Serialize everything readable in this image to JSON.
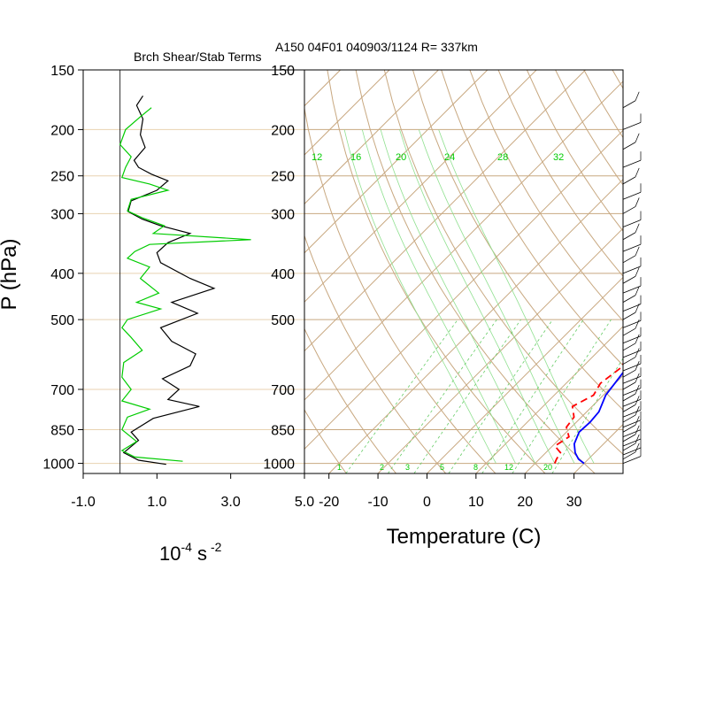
{
  "header_text": "A150 04F01 040903/1124 R= 337km",
  "chart_data": [
    {
      "type": "line",
      "panel": "left",
      "title": "Brch Shear/Stab Terms",
      "xlabel_base": "10",
      "xlabel_exp": "-4",
      "xlabel_unit": "s",
      "xlabel_unit_exp": "-2",
      "ylabel": "P (hPa)",
      "y_scale": "log",
      "y_reversed": true,
      "xlim": [
        -1.0,
        5.0
      ],
      "ylim": [
        1050,
        150
      ],
      "x_ticks": [
        "-1.0",
        "1.0",
        "3.0",
        "5.0"
      ],
      "y_ticks": [
        "150",
        "200",
        "250",
        "300",
        "400",
        "500",
        "700",
        "850",
        "1000"
      ],
      "zero_line": 0,
      "series": [
        {
          "color": "#000000",
          "points": [
            [
              0.62,
              170
            ],
            [
              0.45,
              178
            ],
            [
              0.62,
              190
            ],
            [
              0.55,
              205
            ],
            [
              0.68,
              218
            ],
            [
              0.38,
              232
            ],
            [
              0.5,
              240
            ],
            [
              0.85,
              248
            ],
            [
              1.3,
              256
            ],
            [
              1.0,
              268
            ],
            [
              0.3,
              282
            ],
            [
              0.22,
              297
            ],
            [
              0.6,
              308
            ],
            [
              1.1,
              318
            ],
            [
              1.9,
              330
            ],
            [
              1.3,
              345
            ],
            [
              1.0,
              362
            ],
            [
              1.1,
              380
            ],
            [
              1.9,
              410
            ],
            [
              2.55,
              430
            ],
            [
              1.4,
              460
            ],
            [
              2.1,
              485
            ],
            [
              1.1,
              520
            ],
            [
              1.4,
              555
            ],
            [
              2.05,
              590
            ],
            [
              1.9,
              625
            ],
            [
              1.15,
              665
            ],
            [
              1.6,
              700
            ],
            [
              1.3,
              735
            ],
            [
              2.15,
              760
            ],
            [
              0.9,
              805
            ],
            [
              0.3,
              860
            ],
            [
              0.5,
              895
            ],
            [
              0.1,
              950
            ],
            [
              0.5,
              985
            ],
            [
              1.25,
              1005
            ]
          ]
        },
        {
          "color": "#00cc00",
          "points": [
            [
              0.85,
              180
            ],
            [
              0.55,
              188
            ],
            [
              0.15,
              200
            ],
            [
              0.0,
              215
            ],
            [
              0.3,
              228
            ],
            [
              0.15,
              240
            ],
            [
              0.05,
              252
            ],
            [
              0.8,
              260
            ],
            [
              1.3,
              268
            ],
            [
              0.3,
              280
            ],
            [
              0.2,
              296
            ],
            [
              0.6,
              306
            ],
            [
              1.2,
              318
            ],
            [
              0.9,
              330
            ],
            [
              3.55,
              340
            ],
            [
              0.8,
              348
            ],
            [
              0.4,
              360
            ],
            [
              0.2,
              372
            ],
            [
              0.8,
              388
            ],
            [
              0.55,
              410
            ],
            [
              1.05,
              440
            ],
            [
              0.45,
              460
            ],
            [
              1.1,
              475
            ],
            [
              0.2,
              500
            ],
            [
              0.05,
              520
            ],
            [
              0.3,
              545
            ],
            [
              0.6,
              580
            ],
            [
              0.1,
              615
            ],
            [
              0.05,
              660
            ],
            [
              0.3,
              700
            ],
            [
              0.05,
              740
            ],
            [
              0.8,
              770
            ],
            [
              0.2,
              800
            ],
            [
              0.05,
              850
            ],
            [
              0.45,
              900
            ],
            [
              0.05,
              940
            ],
            [
              0.4,
              970
            ],
            [
              1.7,
              990
            ]
          ]
        }
      ]
    },
    {
      "type": "line",
      "panel": "right",
      "subtype": "skew-T",
      "xlabel": "Temperature (C)",
      "y_scale": "log",
      "y_reversed": true,
      "xlim": [
        -25,
        40
      ],
      "ylim": [
        1050,
        150
      ],
      "x_ticks": [
        "-20",
        "-10",
        "0",
        "10",
        "20",
        "30"
      ],
      "y_ticks": [
        "150",
        "200",
        "250",
        "300",
        "400",
        "500",
        "700",
        "850",
        "1000"
      ],
      "mixing_ratio_labels": [
        "12",
        "16",
        "20",
        "24",
        "28",
        "32"
      ],
      "mixing_ratio_label_colors": "#00cc00",
      "isotherm_labels_bottom": [
        "1",
        "2",
        "3",
        "5",
        "8",
        "12",
        "20"
      ],
      "series": [
        {
          "color": "#0000ff",
          "style": "solid",
          "points": [
            [
              30.0,
              1000
            ],
            [
              28.0,
              980
            ],
            [
              26.0,
              950
            ],
            [
              24.0,
              910
            ],
            [
              22.6,
              860
            ],
            [
              22.8,
              820
            ],
            [
              22.5,
              780
            ],
            [
              20.5,
              720
            ],
            [
              19.5,
              650
            ],
            [
              18.5,
              580
            ],
            [
              17.2,
              520
            ],
            [
              16.3,
              490
            ],
            [
              16.0,
              440
            ],
            [
              14.5,
              400
            ],
            [
              12.0,
              350
            ],
            [
              10.5,
              300
            ],
            [
              8.8,
              270
            ],
            [
              6.0,
              240
            ],
            [
              4.2,
              215
            ],
            [
              2.5,
              195
            ],
            [
              1.0,
              180
            ],
            [
              0.2,
              172
            ]
          ]
        },
        {
          "color": "#ff0000",
          "style": "dashed",
          "points": [
            [
              24.0,
              1000
            ],
            [
              23.5,
              980
            ],
            [
              23.0,
              950
            ],
            [
              20.5,
              920
            ],
            [
              21.5,
              880
            ],
            [
              19.0,
              840
            ],
            [
              18.5,
              800
            ],
            [
              16.0,
              760
            ],
            [
              18.0,
              720
            ],
            [
              17.0,
              680
            ],
            [
              18.0,
              630
            ],
            [
              17.0,
              600
            ],
            [
              16.5,
              560
            ],
            [
              15.0,
              520
            ],
            [
              13.5,
              480
            ],
            [
              14.5,
              450
            ],
            [
              13.5,
              420
            ],
            [
              12.0,
              390
            ],
            [
              9.0,
              375
            ],
            [
              4.5,
              368
            ],
            [
              1.0,
              360
            ],
            [
              6.0,
              352
            ],
            [
              7.5,
              340
            ],
            [
              3.5,
              335
            ],
            [
              8.0,
              325
            ],
            [
              2.0,
              318
            ],
            [
              1.5,
              310
            ],
            [
              -1.5,
              305
            ],
            [
              -4.5,
              296
            ],
            [
              -5.0,
              285
            ],
            [
              -3.5,
              275
            ],
            [
              -2.5,
              262
            ],
            [
              -2.5,
              252
            ],
            [
              -6.0,
              248
            ],
            [
              -5.5,
              235
            ],
            [
              -7.5,
              222
            ],
            [
              -7.0,
              210
            ],
            [
              -9.0,
              200
            ],
            [
              -9.5,
              190
            ]
          ]
        }
      ]
    }
  ]
}
